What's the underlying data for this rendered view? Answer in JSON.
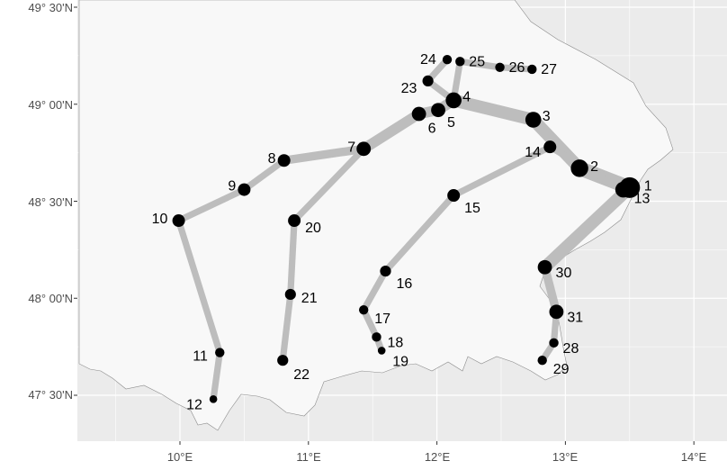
{
  "map": {
    "x_ticks": [
      "10°E",
      "11°E",
      "12°E",
      "13°E",
      "14°E"
    ],
    "y_ticks": [
      "49° 30'N",
      "49° 00'N",
      "48° 30'N",
      "48° 00'N",
      "47° 30'N"
    ],
    "colors": {
      "panel": "#ebebeb",
      "grid": "#ffffff",
      "land": "#f8f8f8",
      "border": "#8c8c8c",
      "edge": "#bdbdbd",
      "node": "#000000"
    },
    "nodes": [
      {
        "id": "1",
        "lon": 13.5,
        "lat": 48.57
      },
      {
        "id": "2",
        "lon": 13.11,
        "lat": 48.67
      },
      {
        "id": "3",
        "lon": 12.75,
        "lat": 48.92
      },
      {
        "id": "4",
        "lon": 12.13,
        "lat": 49.02
      },
      {
        "id": "5",
        "lon": 12.01,
        "lat": 48.97
      },
      {
        "id": "6",
        "lon": 11.86,
        "lat": 48.95
      },
      {
        "id": "7",
        "lon": 11.43,
        "lat": 48.77
      },
      {
        "id": "8",
        "lon": 10.81,
        "lat": 48.71
      },
      {
        "id": "9",
        "lon": 10.5,
        "lat": 48.56
      },
      {
        "id": "10",
        "lon": 9.99,
        "lat": 48.4
      },
      {
        "id": "11",
        "lon": 10.31,
        "lat": 47.72
      },
      {
        "id": "12",
        "lon": 10.26,
        "lat": 47.48
      },
      {
        "id": "13",
        "lon": 13.45,
        "lat": 48.56
      },
      {
        "id": "14",
        "lon": 12.88,
        "lat": 48.78
      },
      {
        "id": "15",
        "lon": 12.13,
        "lat": 48.53
      },
      {
        "id": "16",
        "lon": 11.6,
        "lat": 48.14
      },
      {
        "id": "17",
        "lon": 11.43,
        "lat": 47.94
      },
      {
        "id": "18",
        "lon": 11.53,
        "lat": 47.8
      },
      {
        "id": "19",
        "lon": 11.57,
        "lat": 47.73
      },
      {
        "id": "20",
        "lon": 10.89,
        "lat": 48.4
      },
      {
        "id": "21",
        "lon": 10.86,
        "lat": 48.02
      },
      {
        "id": "22",
        "lon": 10.8,
        "lat": 47.68
      },
      {
        "id": "23",
        "lon": 11.93,
        "lat": 49.12
      },
      {
        "id": "24",
        "lon": 12.08,
        "lat": 49.23
      },
      {
        "id": "25",
        "lon": 12.18,
        "lat": 49.22
      },
      {
        "id": "26",
        "lon": 12.49,
        "lat": 49.19
      },
      {
        "id": "27",
        "lon": 12.74,
        "lat": 49.18
      },
      {
        "id": "28",
        "lon": 12.91,
        "lat": 47.77
      },
      {
        "id": "29",
        "lon": 12.82,
        "lat": 47.68
      },
      {
        "id": "30",
        "lon": 12.84,
        "lat": 48.16
      },
      {
        "id": "31",
        "lon": 12.93,
        "lat": 47.93
      }
    ],
    "edges": [
      [
        "1",
        "2"
      ],
      [
        "2",
        "3"
      ],
      [
        "3",
        "4"
      ],
      [
        "4",
        "5"
      ],
      [
        "5",
        "6"
      ],
      [
        "6",
        "7"
      ],
      [
        "7",
        "8"
      ],
      [
        "8",
        "9"
      ],
      [
        "9",
        "10"
      ],
      [
        "10",
        "11"
      ],
      [
        "11",
        "12"
      ],
      [
        "13",
        "14"
      ],
      [
        "14",
        "15"
      ],
      [
        "15",
        "16"
      ],
      [
        "16",
        "17"
      ],
      [
        "17",
        "18"
      ],
      [
        "18",
        "19"
      ],
      [
        "7",
        "20"
      ],
      [
        "20",
        "21"
      ],
      [
        "21",
        "22"
      ],
      [
        "4",
        "23"
      ],
      [
        "23",
        "24"
      ],
      [
        "4",
        "25"
      ],
      [
        "25",
        "26"
      ],
      [
        "26",
        "27"
      ],
      [
        "1",
        "30"
      ],
      [
        "30",
        "31"
      ],
      [
        "31",
        "28"
      ],
      [
        "28",
        "29"
      ]
    ],
    "edge_weights": [
      5,
      4,
      4,
      3,
      3,
      3,
      2,
      1,
      1,
      1,
      1,
      1,
      1,
      1,
      1,
      1,
      1,
      1,
      1,
      1,
      1,
      1,
      1,
      1,
      1,
      4,
      2,
      1,
      1
    ],
    "node_weights": {
      "1": 5,
      "2": 4,
      "3": 3.5,
      "4": 3.5,
      "5": 3,
      "6": 3,
      "7": 3,
      "8": 2.5,
      "9": 2.5,
      "10": 2.5,
      "11": 1.5,
      "12": 1,
      "13": 3.5,
      "14": 2.5,
      "15": 2.5,
      "16": 2,
      "17": 1.5,
      "18": 1.5,
      "19": 1,
      "20": 2.5,
      "21": 2,
      "22": 2,
      "23": 2,
      "24": 1.5,
      "25": 1.5,
      "26": 1.5,
      "27": 1.5,
      "28": 1.5,
      "29": 1.5,
      "30": 3,
      "31": 3
    }
  }
}
